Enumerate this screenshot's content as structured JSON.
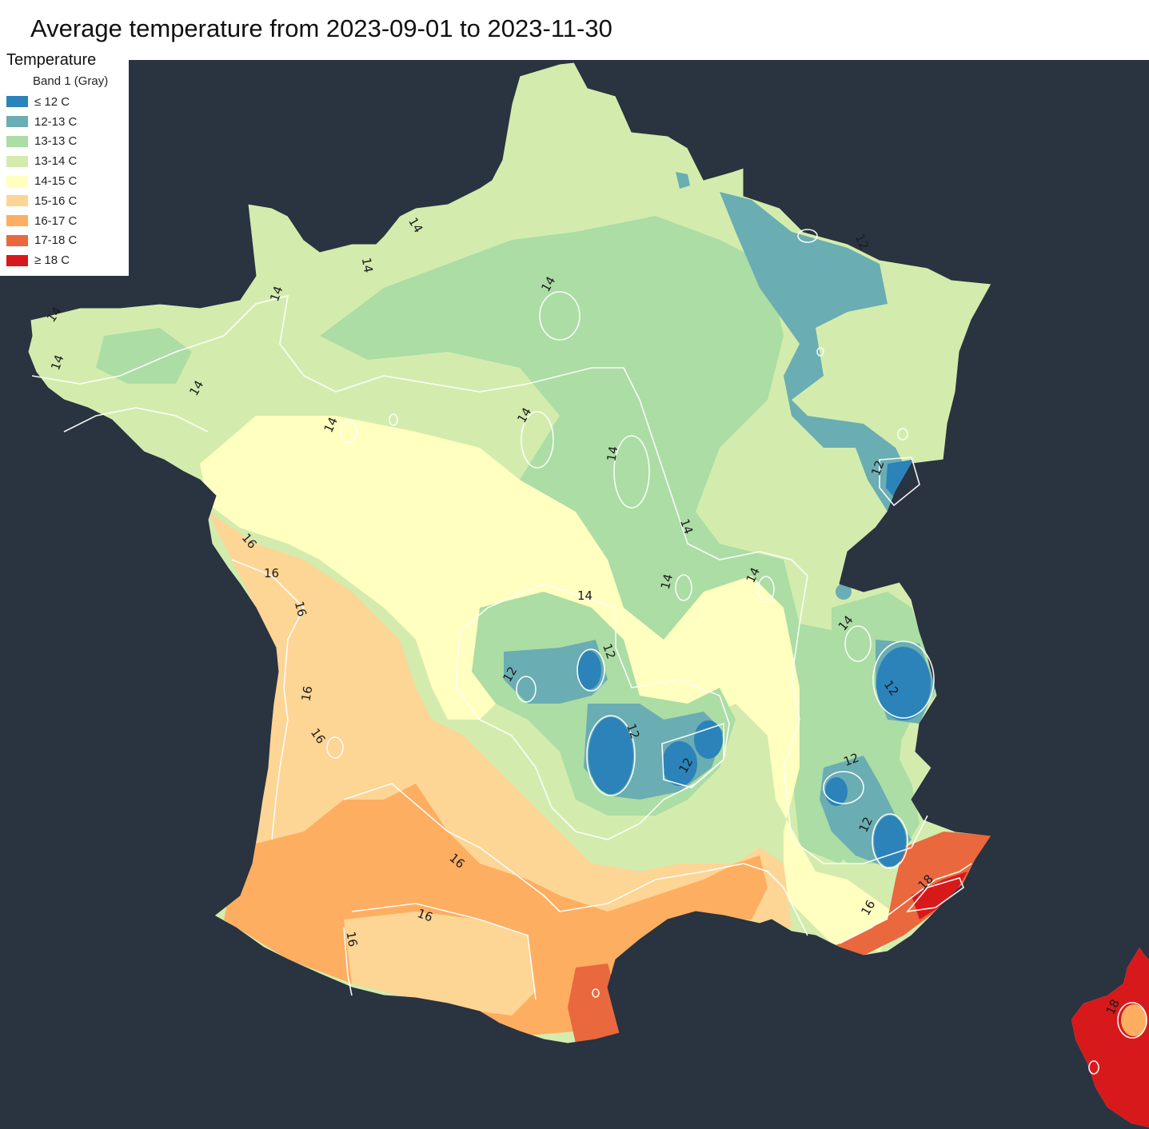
{
  "title": "Average temperature from 2023-09-01 to 2023-11-30",
  "legend": {
    "title": "Temperature",
    "subtitle": "Band 1 (Gray)",
    "items": [
      {
        "label": "≤ 12 C",
        "color": "#2b83ba"
      },
      {
        "label": "12-13 C",
        "color": "#6aadb3"
      },
      {
        "label": "13-13 C",
        "color": "#abdda4"
      },
      {
        "label": "13-14 C",
        "color": "#d3ecad"
      },
      {
        "label": "14-15 C",
        "color": "#ffffbf"
      },
      {
        "label": "15-16 C",
        "color": "#fdd595"
      },
      {
        "label": "16-17 C",
        "color": "#fdae61"
      },
      {
        "label": "17-18 C",
        "color": "#e9683e"
      },
      {
        "label": "≥ 18 C",
        "color": "#d7191c"
      }
    ]
  },
  "map": {
    "background_color": "#2a3340",
    "contour_color": "#ffffff",
    "contour_labels": [
      "14",
      "12",
      "16",
      "18"
    ]
  }
}
